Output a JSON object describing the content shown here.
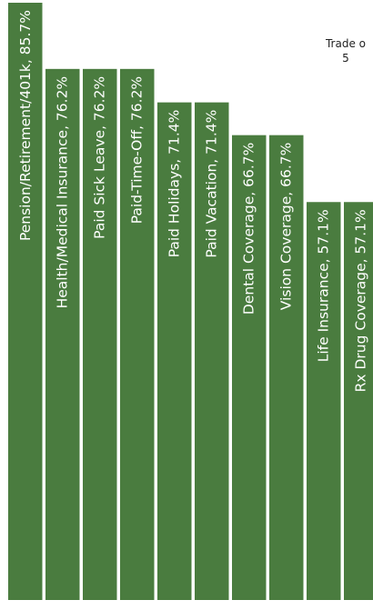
{
  "colors": {
    "bar": "#4a7c3f",
    "label": "#ffffff",
    "background": "#ffffff"
  },
  "note": {
    "line1": "Trade o",
    "line2": "5"
  },
  "chart_data": {
    "type": "bar",
    "orientation": "vertical",
    "title": "",
    "xlabel": "",
    "ylabel": "",
    "ylim": [
      0,
      85.7
    ],
    "grid": false,
    "legend": "none",
    "categories": [
      "Pension/Retirement/401k",
      "Health/Medical Insurance",
      "Paid Sick Leave",
      "Paid-Time-Off",
      "Paid Holidays",
      "Paid Vacation",
      "Dental Coverage",
      "Vision Coverage",
      "Life Insurance",
      "Rx Drug Coverage"
    ],
    "values": [
      85.7,
      76.2,
      76.2,
      76.2,
      71.4,
      71.4,
      66.7,
      66.7,
      57.1,
      57.1
    ],
    "data_labels": [
      "Pension/Retirement/401k, 85.7%",
      "Health/Medical Insurance, 76.2%",
      "Paid Sick Leave, 76.2%",
      "Paid-Time-Off, 76.2%",
      "Paid Holidays, 71.4%",
      "Paid Vacation, 71.4%",
      "Dental Coverage, 66.7%",
      "Vision Coverage, 66.7%",
      "Life Insurance, 57.1%",
      "Rx Drug Coverage, 57.1%"
    ]
  }
}
